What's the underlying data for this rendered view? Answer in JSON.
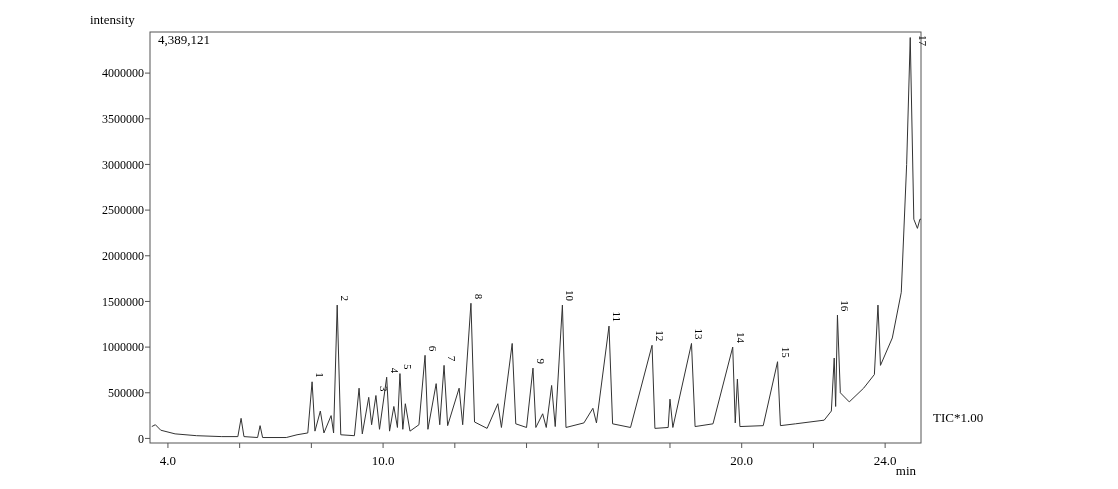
{
  "chart_data": {
    "type": "line",
    "xlabel": "min",
    "ylabel": "intensity",
    "xlim": [
      3.5,
      25.0
    ],
    "xticks": [
      {
        "value": 4,
        "label": "4.0"
      },
      {
        "value": 6,
        "label": null
      },
      {
        "value": 8,
        "label": null
      },
      {
        "value": 10,
        "label": "10.0"
      },
      {
        "value": 12,
        "label": null
      },
      {
        "value": 14,
        "label": null
      },
      {
        "value": 16,
        "label": null
      },
      {
        "value": 18,
        "label": null
      },
      {
        "value": 20,
        "label": "20.0"
      },
      {
        "value": 22,
        "label": null
      },
      {
        "value": 24,
        "label": "24.0"
      }
    ],
    "ylim": [
      -50000,
      4450000
    ],
    "yticks": [
      0,
      500000,
      1000000,
      1500000,
      2000000,
      2500000,
      3000000,
      3500000,
      4000000
    ],
    "grid": false,
    "marker": "none",
    "line_style": "solid",
    "series": [
      {
        "color": "#333333",
        "x": [
          3.55,
          3.65,
          3.8,
          4.2,
          4.8,
          5.5,
          5.95,
          6.04,
          6.12,
          6.5,
          6.57,
          6.64,
          7.3,
          7.6,
          7.9,
          8.02,
          8.1,
          8.25,
          8.35,
          8.55,
          8.62,
          8.72,
          8.82,
          9.2,
          9.33,
          9.42,
          9.6,
          9.68,
          9.8,
          9.9,
          10.1,
          10.18,
          10.3,
          10.4,
          10.47,
          10.55,
          10.62,
          10.75,
          11.0,
          11.17,
          11.25,
          11.48,
          11.58,
          11.7,
          11.8,
          12.12,
          12.22,
          12.45,
          12.55,
          12.9,
          13.2,
          13.3,
          13.6,
          13.7,
          14.0,
          14.18,
          14.26,
          14.45,
          14.55,
          14.7,
          14.8,
          15.0,
          15.1,
          15.6,
          15.85,
          15.95,
          16.3,
          16.4,
          16.9,
          17.5,
          17.58,
          17.95,
          18.0,
          18.08,
          18.6,
          18.7,
          19.2,
          19.75,
          19.82,
          19.88,
          19.95,
          20.6,
          21.0,
          21.08,
          21.5,
          22.3,
          22.5,
          22.58,
          22.62,
          22.67,
          22.75,
          23.0,
          23.4,
          23.7,
          23.8,
          23.87,
          24.2,
          24.45,
          24.6,
          24.7,
          24.8,
          24.9,
          24.97,
          25.0
        ],
        "values": [
          130000,
          150000,
          90000,
          50000,
          30000,
          20000,
          20000,
          220000,
          20000,
          10000,
          140000,
          10000,
          10000,
          40000,
          60000,
          620000,
          80000,
          300000,
          60000,
          250000,
          60000,
          1460000,
          40000,
          30000,
          550000,
          50000,
          450000,
          150000,
          470000,
          100000,
          670000,
          80000,
          350000,
          120000,
          710000,
          100000,
          380000,
          80000,
          150000,
          910000,
          100000,
          600000,
          150000,
          800000,
          140000,
          550000,
          150000,
          1480000,
          180000,
          110000,
          380000,
          120000,
          1040000,
          160000,
          120000,
          770000,
          120000,
          270000,
          120000,
          580000,
          130000,
          1460000,
          120000,
          170000,
          330000,
          170000,
          1230000,
          160000,
          120000,
          1020000,
          110000,
          120000,
          430000,
          120000,
          1040000,
          130000,
          160000,
          1000000,
          170000,
          650000,
          130000,
          140000,
          840000,
          140000,
          160000,
          200000,
          300000,
          880000,
          350000,
          1350000,
          500000,
          400000,
          550000,
          700000,
          1460000,
          800000,
          1100000,
          1600000,
          3000000,
          4389121,
          2400000,
          2300000,
          2400000,
          2400000
        ]
      }
    ],
    "annotations": [
      "4,389,121",
      "TIC*1.00",
      {
        "text": "1",
        "x": 8.02,
        "y": 620000
      },
      {
        "text": "2",
        "x": 8.72,
        "y": 1460000
      },
      {
        "text": "3",
        "x": 9.8,
        "y": 470000
      },
      {
        "text": "4",
        "x": 10.1,
        "y": 670000
      },
      {
        "text": "5",
        "x": 10.47,
        "y": 710000
      },
      {
        "text": "6",
        "x": 11.17,
        "y": 910000
      },
      {
        "text": "7",
        "x": 11.7,
        "y": 800000
      },
      {
        "text": "8",
        "x": 12.45,
        "y": 1480000
      },
      {
        "text": "9",
        "x": 14.18,
        "y": 770000
      },
      {
        "text": "10",
        "x": 15.0,
        "y": 1460000
      },
      {
        "text": "11",
        "x": 16.3,
        "y": 1230000
      },
      {
        "text": "12",
        "x": 17.5,
        "y": 1020000
      },
      {
        "text": "13",
        "x": 18.6,
        "y": 1040000
      },
      {
        "text": "14",
        "x": 19.75,
        "y": 1000000
      },
      {
        "text": "15",
        "x": 21.0,
        "y": 840000
      },
      {
        "text": "16",
        "x": 22.67,
        "y": 1350000
      },
      {
        "text": "17",
        "x": 24.7,
        "y": 4389121
      }
    ]
  }
}
